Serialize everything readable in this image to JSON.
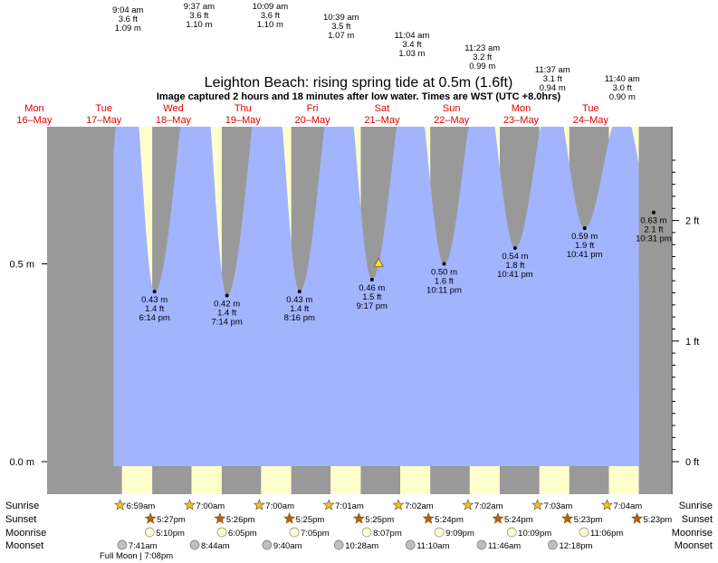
{
  "title": "Leighton Beach: rising  spring tide at 0.5m (1.6ft)",
  "subtitle": "Image captured 2 hours and 18 minutes after low water. Times are WST (UTC +8.0hrs)",
  "colors": {
    "water": "#a3b4ff",
    "night": "#999999",
    "day": "#ffffcc",
    "daylabel": "#e00000",
    "sunrise": "#e8c040",
    "sunset": "#c06010",
    "moonrise": "#ffffcc",
    "moonset": "#c0c0b8"
  },
  "chart_data": {
    "type": "area",
    "title": "Leighton Beach: rising  spring tide at 0.5m (1.6ft)",
    "y_left_ticks": [
      {
        "v": 0.0,
        "label": "0.0 m"
      },
      {
        "v": 0.5,
        "label": "0.5 m"
      }
    ],
    "y_right_ticks": [
      {
        "v": 0.0,
        "label": "0 ft"
      },
      {
        "v": 0.3048,
        "label": "1 ft"
      },
      {
        "v": 0.6096,
        "label": "2 ft"
      }
    ],
    "days": [
      {
        "name": "Mon",
        "date": "16–May"
      },
      {
        "name": "Tue",
        "date": "17–May"
      },
      {
        "name": "Wed",
        "date": "18–May"
      },
      {
        "name": "Thu",
        "date": "19–May"
      },
      {
        "name": "Fri",
        "date": "20–May"
      },
      {
        "name": "Sat",
        "date": "21–May"
      },
      {
        "name": "Sun",
        "date": "22–May"
      },
      {
        "name": "Mon",
        "date": "23–May"
      },
      {
        "name": "Tue",
        "date": "24–May"
      }
    ],
    "high_tides": [
      {
        "day": 1,
        "hour": 9.067,
        "m": 1.09,
        "ft": "3.6 ft",
        "m_label": "1.09 m",
        "time": "9:04 am"
      },
      {
        "day": 2,
        "hour": 9.617,
        "m": 1.1,
        "ft": "3.6 ft",
        "m_label": "1.10 m",
        "time": "9:37 am"
      },
      {
        "day": 3,
        "hour": 10.15,
        "m": 1.1,
        "ft": "3.6 ft",
        "m_label": "1.10 m",
        "time": "10:09 am"
      },
      {
        "day": 4,
        "hour": 10.65,
        "m": 1.07,
        "ft": "3.5 ft",
        "m_label": "1.07 m",
        "time": "10:39 am"
      },
      {
        "day": 5,
        "hour": 11.067,
        "m": 1.03,
        "ft": "3.4 ft",
        "m_label": "1.03 m",
        "time": "11:04 am"
      },
      {
        "day": 6,
        "hour": 11.383,
        "m": 0.99,
        "ft": "3.2 ft",
        "m_label": "0.99 m",
        "time": "11:23 am"
      },
      {
        "day": 7,
        "hour": 11.617,
        "m": 0.94,
        "ft": "3.1 ft",
        "m_label": "0.94 m",
        "time": "11:37 am"
      },
      {
        "day": 8,
        "hour": 11.667,
        "m": 0.9,
        "ft": "3.0 ft",
        "m_label": "0.90 m",
        "time": "11:40 am"
      }
    ],
    "low_tides": [
      {
        "day": 1,
        "hour": 18.233,
        "m": 0.43,
        "m_label": "0.43 m",
        "ft": "1.4 ft",
        "time": "6:14 pm"
      },
      {
        "day": 2,
        "hour": 19.233,
        "m": 0.42,
        "m_label": "0.42 m",
        "ft": "1.4 ft",
        "time": "7:14 pm"
      },
      {
        "day": 3,
        "hour": 20.267,
        "m": 0.43,
        "m_label": "0.43 m",
        "ft": "1.4 ft",
        "time": "8:16 pm"
      },
      {
        "day": 4,
        "hour": 21.283,
        "m": 0.46,
        "m_label": "0.46 m",
        "ft": "1.5 ft",
        "time": "9:17 pm"
      },
      {
        "day": 5,
        "hour": 22.183,
        "m": 0.5,
        "m_label": "0.50 m",
        "ft": "1.6 ft",
        "time": "10:11 pm"
      },
      {
        "day": 6,
        "hour": 22.683,
        "m": 0.54,
        "m_label": "0.54 m",
        "ft": "1.8 ft",
        "time": "10:41 pm"
      },
      {
        "day": 7,
        "hour": 22.683,
        "m": 0.59,
        "m_label": "0.59 m",
        "ft": "1.9 ft",
        "time": "10:41 pm"
      },
      {
        "day": 8,
        "hour": 22.517,
        "m": 0.63,
        "m_label": "0.63 m",
        "ft": "2.1 ft",
        "time": "10:31 pm"
      }
    ],
    "current": {
      "day": 4,
      "hour": 23.583,
      "m": 0.5
    },
    "sun_moon": [
      {
        "day": 1,
        "sunrise": "6:59am",
        "sunset": "5:27pm",
        "moonrise": "5:10pm",
        "moonset": "7:41am"
      },
      {
        "day": 2,
        "sunrise": "7:00am",
        "sunset": "5:26pm",
        "moonrise": "6:05pm",
        "moonset": "8:44am"
      },
      {
        "day": 3,
        "sunrise": "7:00am",
        "sunset": "5:25pm",
        "moonrise": "7:05pm",
        "moonset": "9:40am"
      },
      {
        "day": 4,
        "sunrise": "7:01am",
        "sunset": "5:25pm",
        "moonrise": "8:07pm",
        "moonset": "10:28am"
      },
      {
        "day": 5,
        "sunrise": "7:02am",
        "sunset": "5:24pm",
        "moonrise": "9:09pm",
        "moonset": "11:10am"
      },
      {
        "day": 6,
        "sunrise": "7:02am",
        "sunset": "5:24pm",
        "moonrise": "10:09pm",
        "moonset": "11:46am"
      },
      {
        "day": 7,
        "sunrise": "7:03am",
        "sunset": "5:23pm",
        "moonrise": "11:06pm",
        "moonset": "12:18pm"
      },
      {
        "day": 8,
        "sunrise": "7:04am",
        "sunset": "5:23pm",
        "moonrise": "",
        "moonset": ""
      }
    ],
    "row_labels": [
      "Sunrise",
      "Sunset",
      "Moonrise",
      "Moonset"
    ],
    "full_moon": "Full Moon | 7:08pm"
  }
}
